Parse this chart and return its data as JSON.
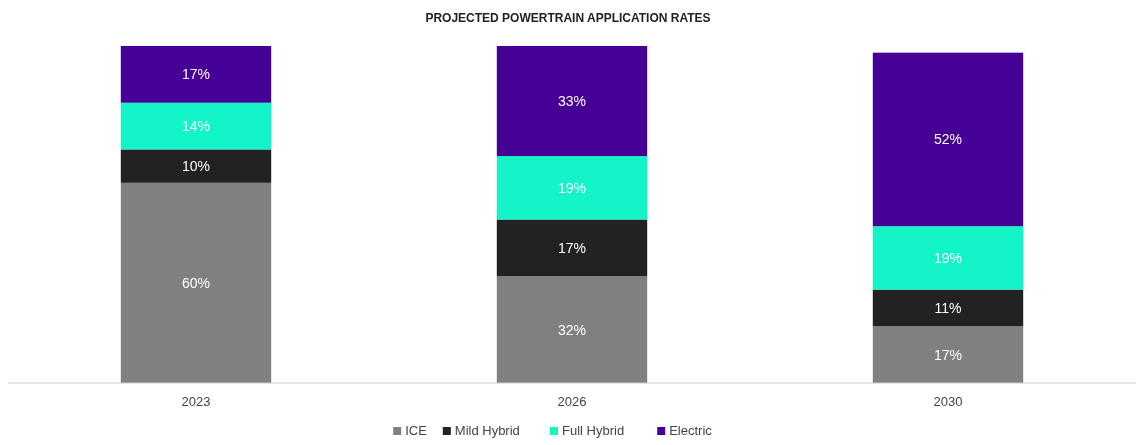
{
  "chart_data": {
    "type": "bar",
    "title": "PROJECTED POWERTRAIN APPLICATION RATES",
    "categories": [
      "2023",
      "2026",
      "2030"
    ],
    "stacked": true,
    "legend": "bottom",
    "series": [
      {
        "name": "ICE",
        "color": "#808080",
        "values": [
          60,
          32,
          17
        ],
        "value_labels": [
          "60%",
          "32%",
          "17%"
        ]
      },
      {
        "name": "Mild Hybrid",
        "color": "#222222",
        "values": [
          10,
          17,
          11
        ],
        "value_labels": [
          "10%",
          "17%",
          "11%"
        ]
      },
      {
        "name": "Full Hybrid",
        "color": "#13f5c8",
        "values": [
          14,
          19,
          19
        ],
        "value_labels": [
          "14%",
          "19%",
          "19%"
        ]
      },
      {
        "name": "Electric",
        "color": "#470096",
        "values": [
          17,
          33,
          52
        ],
        "value_labels": [
          "17%",
          "33%",
          "52%"
        ]
      }
    ]
  }
}
